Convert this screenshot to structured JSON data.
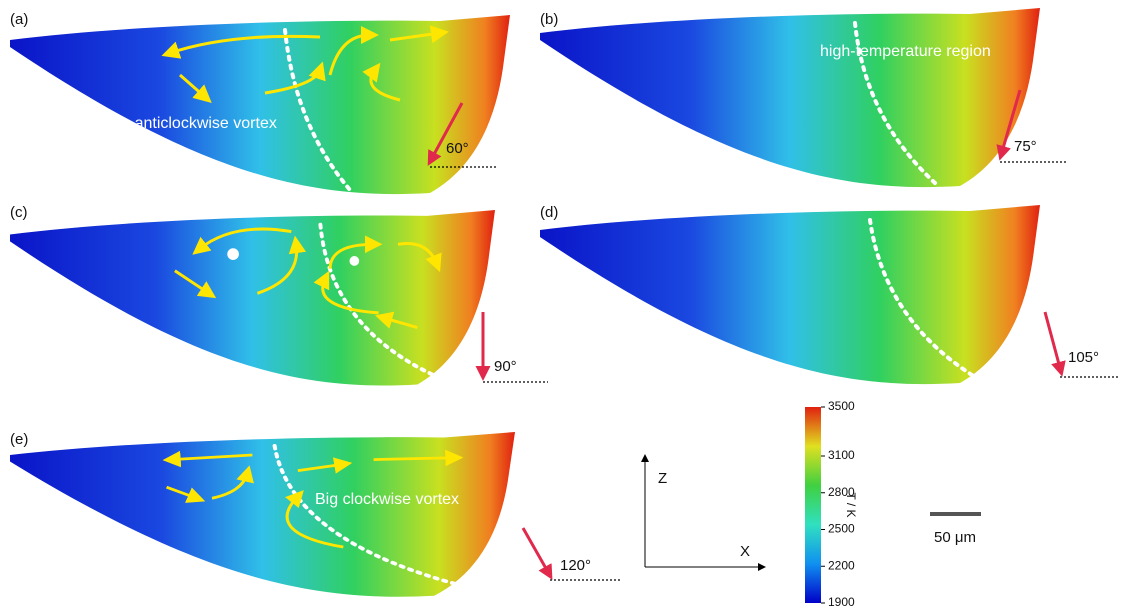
{
  "panels": [
    {
      "label": "(a)",
      "angle": "60°",
      "annotation": "Big anticlockwise vortex"
    },
    {
      "label": "(b)",
      "angle": "75°",
      "annotation": "high-temperature region"
    },
    {
      "label": "(c)",
      "angle": "90°"
    },
    {
      "label": "(d)",
      "angle": "105°"
    },
    {
      "label": "(e)",
      "angle": "120°",
      "annotation": "Big clockwise vortex"
    }
  ],
  "axes": {
    "z": "Z",
    "x": "X"
  },
  "colorbar": {
    "label": "T / K",
    "range": [
      1900,
      3500
    ],
    "ticks": [
      3500,
      3100,
      2800,
      2500,
      2200,
      1900
    ]
  },
  "scale_bar": "50 μm"
}
